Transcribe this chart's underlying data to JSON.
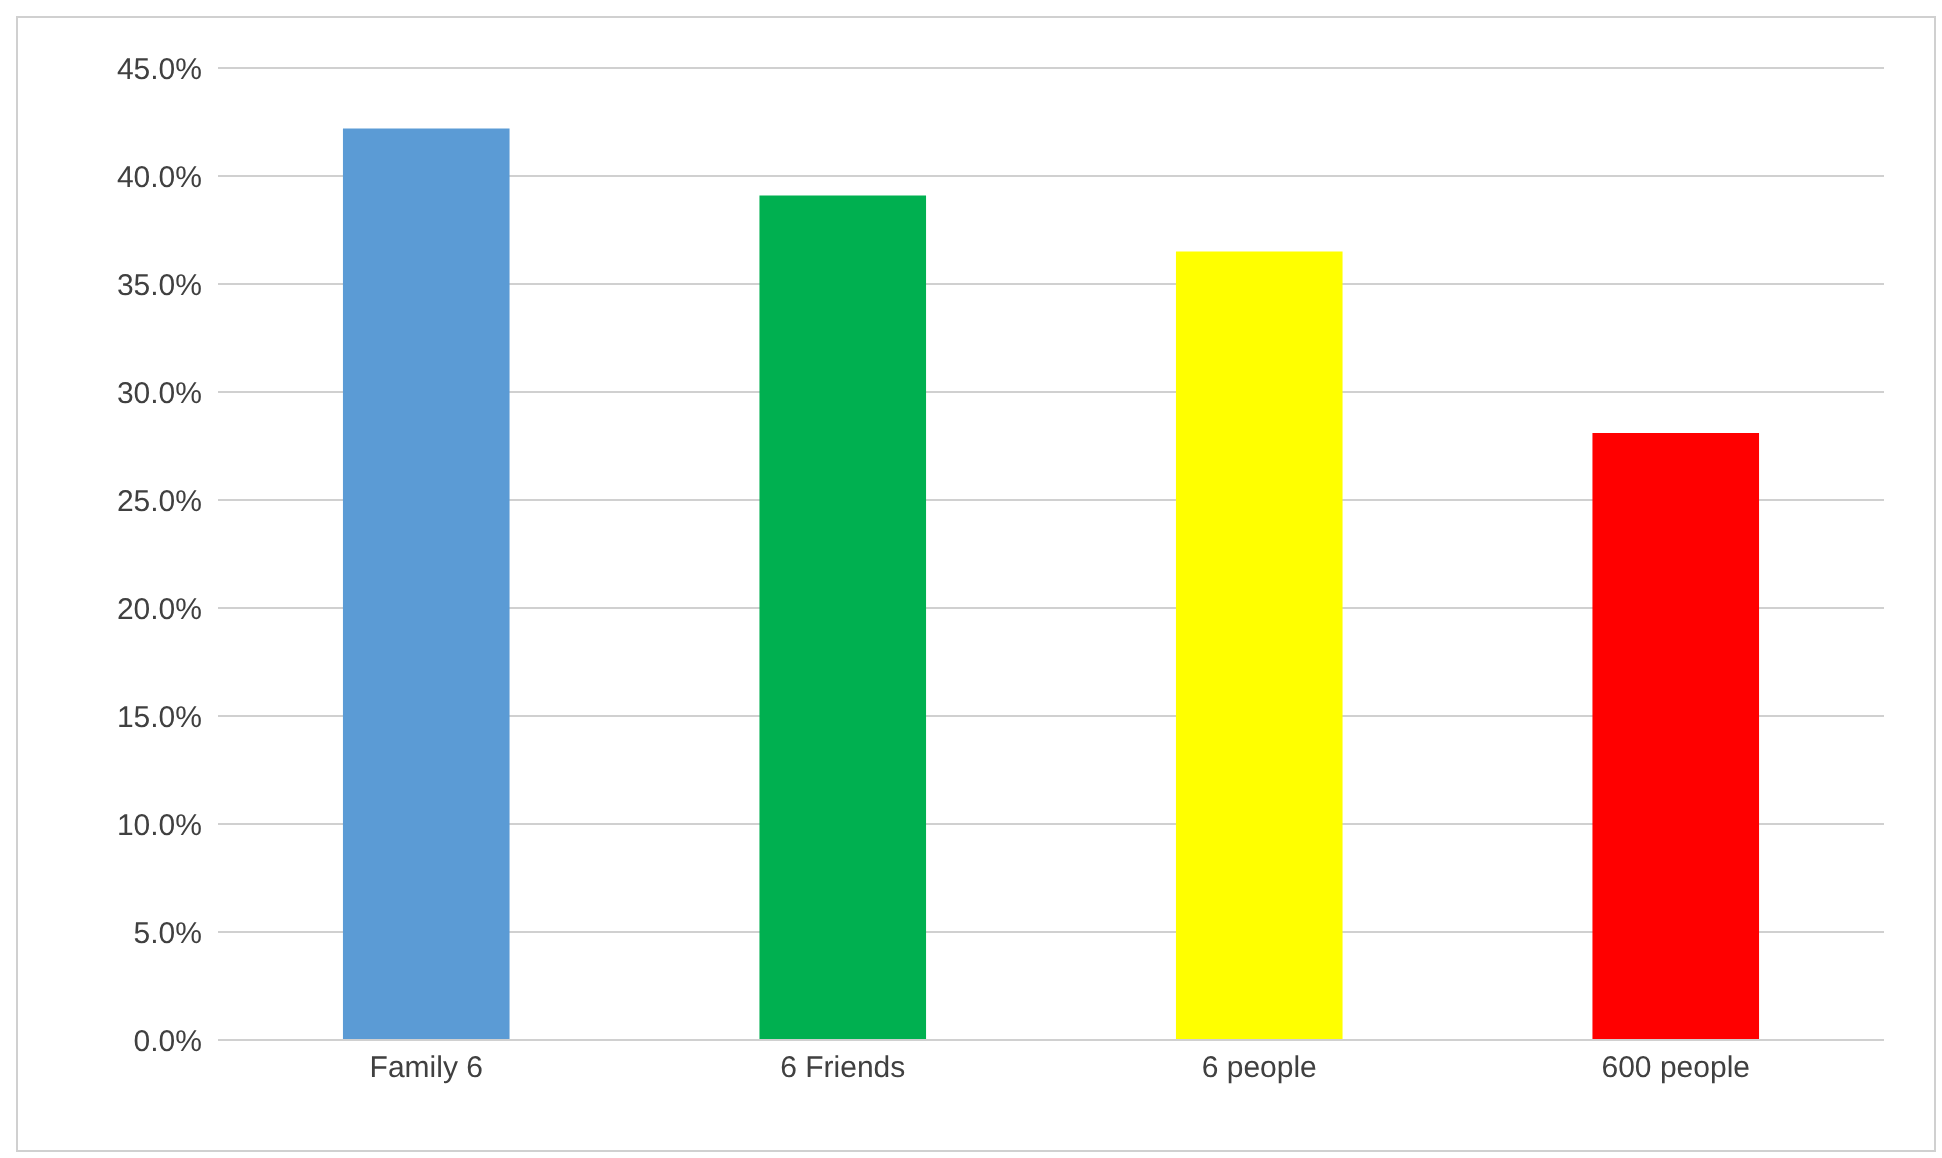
{
  "chart_data": {
    "type": "bar",
    "categories": [
      "Family 6",
      "6 Friends",
      "6 people",
      "600 people"
    ],
    "values": [
      42.2,
      39.1,
      36.5,
      28.1
    ],
    "colors": [
      "#5b9bd5",
      "#00b050",
      "#ffff00",
      "#ff0000"
    ],
    "ylim": [
      0,
      45
    ],
    "yticks": [
      {
        "value": 0,
        "label": "0.0%"
      },
      {
        "value": 5,
        "label": "5.0%"
      },
      {
        "value": 10,
        "label": "10.0%"
      },
      {
        "value": 15,
        "label": "15.0%"
      },
      {
        "value": 20,
        "label": "20.0%"
      },
      {
        "value": 25,
        "label": "25.0%"
      },
      {
        "value": 30,
        "label": "30.0%"
      },
      {
        "value": 35,
        "label": "35.0%"
      },
      {
        "value": 40,
        "label": "40.0%"
      },
      {
        "value": 45,
        "label": "45.0%"
      }
    ],
    "grid": "y"
  }
}
